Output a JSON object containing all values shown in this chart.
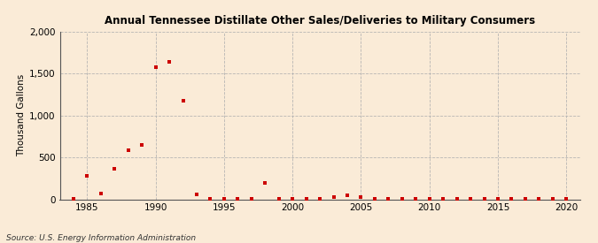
{
  "title": "Annual Tennessee Distillate Other Sales/Deliveries to Military Consumers",
  "ylabel": "Thousand Gallons",
  "source": "Source: U.S. Energy Information Administration",
  "background_color": "#faebd7",
  "plot_background_color": "#faebd7",
  "marker_color": "#cc0000",
  "marker_size": 3.5,
  "xlim": [
    1983,
    2021
  ],
  "ylim": [
    0,
    2000
  ],
  "yticks": [
    0,
    500,
    1000,
    1500,
    2000
  ],
  "xticks": [
    1985,
    1990,
    1995,
    2000,
    2005,
    2010,
    2015,
    2020
  ],
  "years": [
    1984,
    1985,
    1986,
    1987,
    1988,
    1989,
    1990,
    1991,
    1992,
    1993,
    1994,
    1995,
    1996,
    1997,
    1998,
    1999,
    2000,
    2001,
    2002,
    2003,
    2004,
    2005,
    2006,
    2007,
    2008,
    2009,
    2010,
    2011,
    2012,
    2013,
    2014,
    2015,
    2016,
    2017,
    2018,
    2019,
    2020
  ],
  "values": [
    5,
    280,
    70,
    360,
    590,
    650,
    1580,
    1640,
    1180,
    60,
    5,
    5,
    5,
    5,
    190,
    5,
    5,
    5,
    5,
    30,
    50,
    30,
    5,
    5,
    5,
    5,
    5,
    5,
    5,
    5,
    5,
    5,
    5,
    5,
    5,
    5,
    5
  ]
}
